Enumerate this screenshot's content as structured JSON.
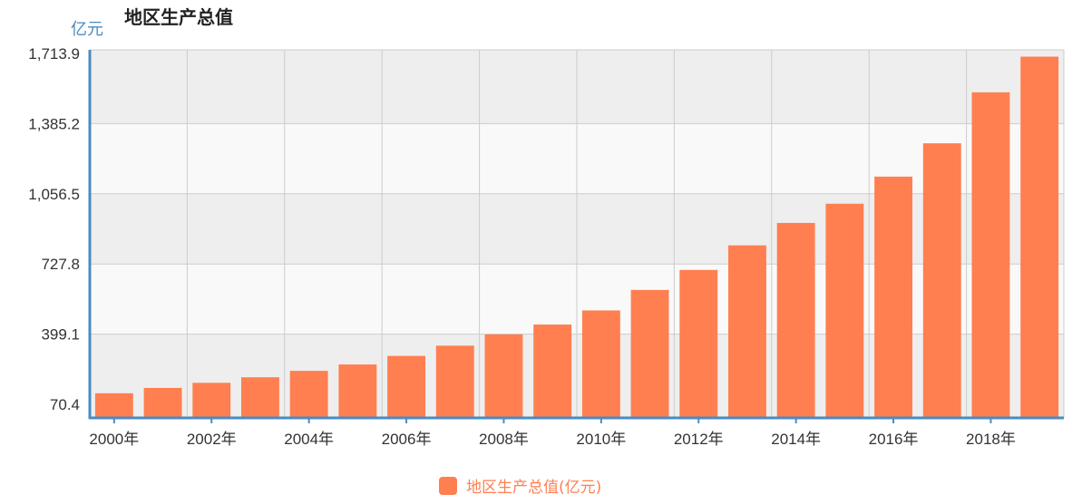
{
  "colors": {
    "bar": "#ff7f50",
    "axis": "#4a8bc2",
    "band_dark": "#eeeeee",
    "band_light": "#f9f9f9",
    "grid": "#cccccc",
    "unit_label": "#4a8bc2",
    "legend_text": "#ff7f50"
  },
  "chart_data": {
    "type": "bar",
    "title": "地区生产总值",
    "ylabel": "亿元",
    "xlabel": "",
    "categories": [
      "2000",
      "2001",
      "2002",
      "2003",
      "2004",
      "2005",
      "2006",
      "2007",
      "2008",
      "2009",
      "2010",
      "2011",
      "2012",
      "2013",
      "2014",
      "2015",
      "2016",
      "2017",
      "2018",
      "2019"
    ],
    "x_tick_labels": [
      "2000年",
      "2002年",
      "2004年",
      "2006年",
      "2008年",
      "2010年",
      "2012年",
      "2014年",
      "2016年",
      "2018年"
    ],
    "y_tick_labels": [
      "70.4",
      "399.1",
      "727.8",
      "1,056.5",
      "1,385.2",
      "1,713.9"
    ],
    "y_ticks": [
      70.4,
      399.1,
      727.8,
      1056.5,
      1385.2,
      1713.9
    ],
    "ylim": [
      70.4,
      1713.9
    ],
    "grid": true,
    "legend_position": "bottom-center",
    "series": [
      {
        "name": "地区生产总值(亿元)",
        "values": [
          122,
          147,
          171,
          197,
          227,
          257,
          297,
          345,
          398,
          444,
          510,
          606,
          700,
          815,
          920,
          1010,
          1137,
          1293,
          1532,
          1699
        ]
      }
    ]
  }
}
